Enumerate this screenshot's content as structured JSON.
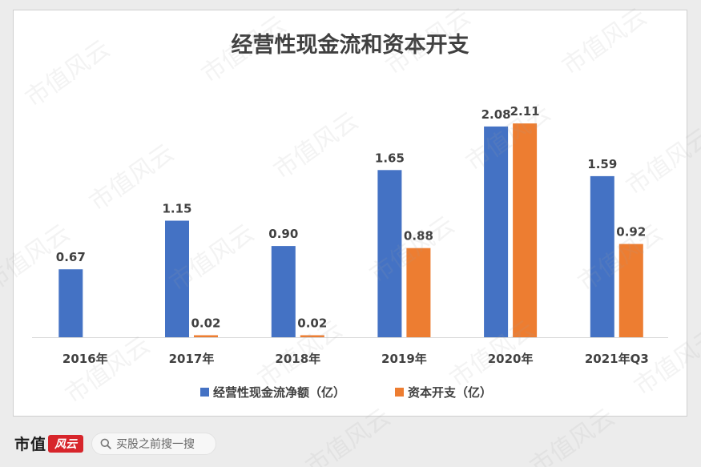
{
  "chart_data": {
    "type": "bar",
    "title": "经营性现金流和资本开支",
    "categories": [
      "2016年",
      "2017年",
      "2018年",
      "2019年",
      "2020年",
      "2021年Q3"
    ],
    "series": [
      {
        "name": "经营性现金流净额（亿）",
        "color": "#4472c4",
        "values": [
          0.67,
          1.15,
          0.9,
          1.65,
          2.08,
          1.59
        ],
        "labels": [
          "0.67",
          "1.15",
          "0.90",
          "1.65",
          "2.08",
          "1.59"
        ]
      },
      {
        "name": "资本开支（亿）",
        "color": "#ed7d31",
        "values": [
          null,
          0.02,
          0.02,
          0.88,
          2.11,
          0.92
        ],
        "labels": [
          "",
          "0.02",
          "0.02",
          "0.88",
          "2.11",
          "0.92"
        ]
      }
    ],
    "xlabel": "",
    "ylabel": "",
    "ylim": [
      0,
      2.2
    ],
    "grid": false,
    "legend_position": "bottom"
  },
  "watermark": {
    "text": "市值风云"
  },
  "footer": {
    "brand_text": "市值",
    "brand_seal_text": "风云",
    "search_placeholder": "买股之前搜一搜",
    "search_icon": "magnifier-icon"
  }
}
